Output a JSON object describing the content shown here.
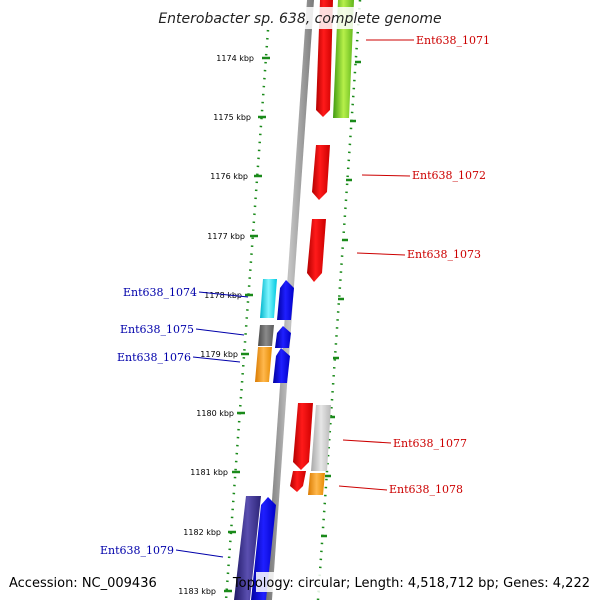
{
  "title": "Enterobacter sp. 638, complete genome",
  "accession": "Accession: NC_009436",
  "summary": "Topology: circular; Length: 4,518,712 bp; Genes: 4,222",
  "tick_labels": [
    "1174 kbp",
    "1175 kbp",
    "1176 kbp",
    "1177 kbp",
    "1178 kbp",
    "1179 kbp",
    "1180 kbp",
    "1181 kbp",
    "1182 kbp",
    "1183 kbp"
  ],
  "colors": {
    "backbone": "#8c8c8c",
    "dots": "#1a8a1a",
    "forward_label": "#cc0000",
    "reverse_label": "#0000aa",
    "red": "#ff0000",
    "green": "#7ccd1a",
    "blue": "#0000ff",
    "navy": "#3a2f8f",
    "cyan": "#00e5ff",
    "gray": "#6b6b6b",
    "lightgray": "#c8c8c8",
    "orange": "#ff9900"
  },
  "genes_forward": [
    "Ent638_1071",
    "Ent638_1072",
    "Ent638_1073",
    "Ent638_1077",
    "Ent638_1078"
  ],
  "genes_reverse": [
    "Ent638_1074",
    "Ent638_1075",
    "Ent638_1076",
    "Ent638_1079"
  ]
}
